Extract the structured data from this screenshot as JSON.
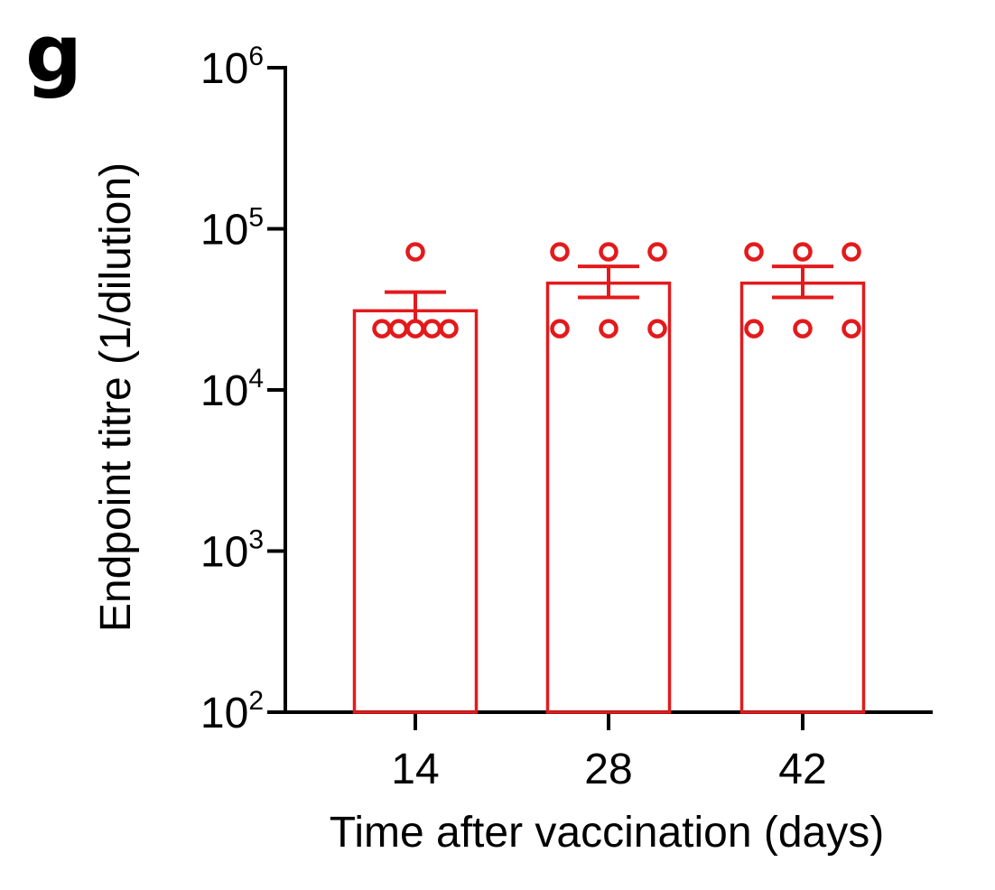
{
  "panel_label": "g",
  "colors": {
    "series": "#e31a1c",
    "axis": "#000000",
    "background": "#ffffff"
  },
  "chart_data": {
    "type": "bar",
    "xlabel": "Time after vaccination (days)",
    "ylabel": "Endpoint titre (1/dilution)",
    "y_scale": "log",
    "ylim": [
      100,
      1000000
    ],
    "y_ticks": [
      {
        "base": "10",
        "exp": "2",
        "value": 100
      },
      {
        "base": "10",
        "exp": "3",
        "value": 1000
      },
      {
        "base": "10",
        "exp": "4",
        "value": 10000
      },
      {
        "base": "10",
        "exp": "5",
        "value": 100000
      },
      {
        "base": "10",
        "exp": "6",
        "value": 1000000
      }
    ],
    "categories": [
      "14",
      "28",
      "42"
    ],
    "bars": [
      {
        "category": "14",
        "mean": 31000,
        "sem_low": 24000,
        "sem_high": 40500,
        "points": [
          72000,
          24000,
          24000,
          24000,
          24000,
          24000
        ]
      },
      {
        "category": "28",
        "mean": 46000,
        "sem_low": 37500,
        "sem_high": 58500,
        "points": [
          72000,
          72000,
          72000,
          24000,
          24000,
          24000
        ]
      },
      {
        "category": "42",
        "mean": 46000,
        "sem_low": 37500,
        "sem_high": 58500,
        "points": [
          72000,
          72000,
          72000,
          24000,
          24000,
          24000
        ]
      }
    ],
    "grid": false,
    "legend": "none"
  }
}
